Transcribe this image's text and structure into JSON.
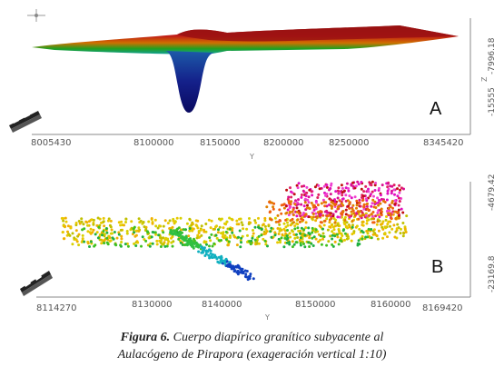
{
  "panel_a": {
    "letter": "A",
    "x_ticks": [
      "8005430",
      "8100000",
      "8150000",
      "8200000",
      "8250000",
      "8345420"
    ],
    "x_axis_name": "Y",
    "z_ticks": [
      "-15555",
      "-7996.18"
    ],
    "z_axis_name": "Z"
  },
  "panel_b": {
    "letter": "B",
    "x_ticks": [
      "8114270",
      "8130000",
      "8140000",
      "8150000",
      "8160000",
      "8169420"
    ],
    "x_axis_name": "Y",
    "z_ticks": [
      "-23169.8",
      "-4679.42"
    ]
  },
  "caption": {
    "label": "Figura 6.",
    "line1": "Cuerpo diapírico granítico subyacente al",
    "line2": "Aulacógeno de Pirapora (exageración vertical 1:10)"
  },
  "colors": {
    "red": "#b01010",
    "green": "#18a018",
    "blue": "#1010a0",
    "magenta": "#e010c0",
    "yellow": "#e0c000"
  }
}
